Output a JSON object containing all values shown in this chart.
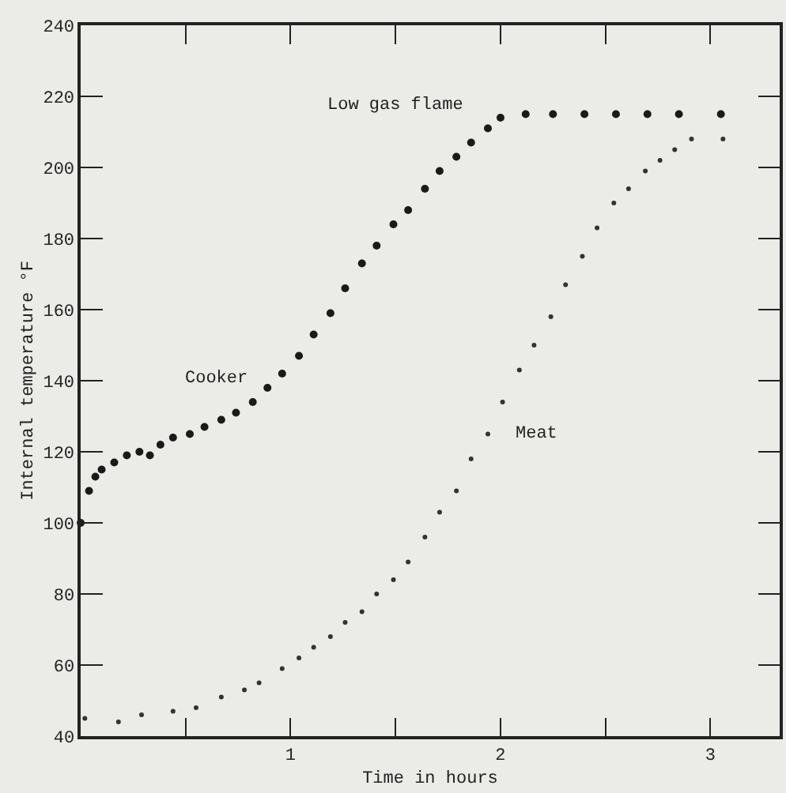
{
  "chart_data": {
    "type": "scatter",
    "xlabel": "Time in hours",
    "ylabel": "Internal temperature °F",
    "annotations": [
      "Low gas flame"
    ],
    "xlim": [
      0,
      3.33
    ],
    "ylim": [
      40,
      240
    ],
    "xticks": [
      {
        "value": 0.5,
        "label": null
      },
      1,
      {
        "value": 1.5,
        "label": null
      },
      2,
      {
        "value": 2.5,
        "label": null
      },
      3
    ],
    "yticks": [
      40,
      60,
      80,
      100,
      120,
      140,
      160,
      180,
      200,
      220,
      240
    ],
    "grid": false,
    "legend": false,
    "marker": "circle",
    "series": [
      {
        "name": "Cooker",
        "color": "#1a1a1a",
        "x": [
          0,
          0.04,
          0.07,
          0.1,
          0.16,
          0.22,
          0.28,
          0.33,
          0.38,
          0.44,
          0.52,
          0.59,
          0.67,
          0.74,
          0.82,
          0.89,
          0.96,
          1.04,
          1.11,
          1.19,
          1.26,
          1.34,
          1.41,
          1.49,
          1.56,
          1.64,
          1.71,
          1.79,
          1.86,
          1.94,
          2.0,
          2.12,
          2.25,
          2.4,
          2.55,
          2.7,
          2.85,
          3.05
        ],
        "values": [
          100,
          109,
          113,
          115,
          117,
          119,
          120,
          119,
          122,
          124,
          125,
          127,
          129,
          131,
          134,
          138,
          142,
          147,
          153,
          159,
          166,
          173,
          178,
          184,
          188,
          194,
          199,
          203,
          207,
          211,
          214,
          215,
          215,
          215,
          215,
          215,
          215,
          215
        ]
      },
      {
        "name": "Meat",
        "color": "#333333",
        "x": [
          0.02,
          0.18,
          0.29,
          0.44,
          0.55,
          0.67,
          0.78,
          0.85,
          0.96,
          1.04,
          1.11,
          1.19,
          1.26,
          1.34,
          1.41,
          1.49,
          1.56,
          1.64,
          1.71,
          1.79,
          1.86,
          1.94,
          2.01,
          2.09,
          2.16,
          2.24,
          2.31,
          2.39,
          2.46,
          2.54,
          2.61,
          2.69,
          2.76,
          2.83,
          2.91,
          3.06
        ],
        "values": [
          45,
          44,
          46,
          47,
          48,
          51,
          53,
          55,
          59,
          62,
          65,
          68,
          72,
          75,
          80,
          84,
          89,
          96,
          103,
          109,
          118,
          125,
          134,
          143,
          150,
          158,
          167,
          175,
          183,
          190,
          194,
          199,
          202,
          205,
          208,
          208
        ]
      }
    ]
  }
}
